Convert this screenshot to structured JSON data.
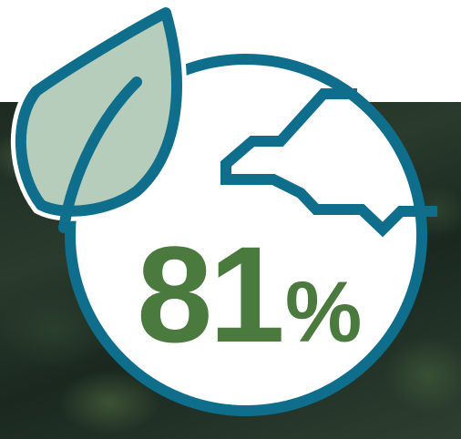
{
  "stat": {
    "value": "81",
    "unit": "%"
  },
  "icons": [
    "leaf-icon",
    "coastline-map-icon"
  ],
  "colors": {
    "outline": "#0e6e8c",
    "leaf_fill": "#b6cdbb",
    "percent_text": "#4a7a3e",
    "circle_fill": "#ffffff",
    "background_top": "#ffffff",
    "background_forest": "#243326"
  }
}
